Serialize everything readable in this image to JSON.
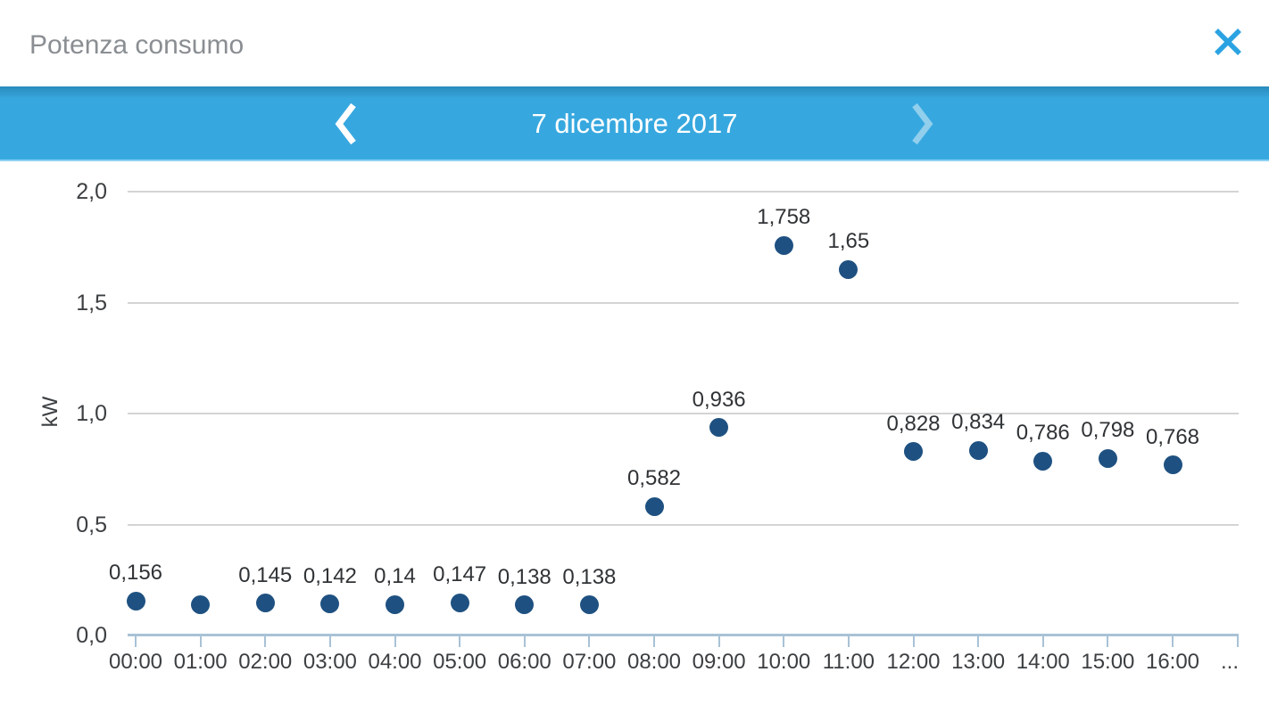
{
  "header": {
    "title": "Potenza consumo"
  },
  "icons": {
    "close": "close-x",
    "prev": "chevron-left",
    "next": "chevron-right"
  },
  "date_nav": {
    "label": "7 dicembre 2017"
  },
  "colors": {
    "accent_blue": "#37a8df",
    "close_blue": "#2ba3e2",
    "point_navy": "#1e5181",
    "grid_gray": "#d4d4d4",
    "axis_blue_gray": "#a9c2d6",
    "text_dark": "#3c3f42",
    "title_gray": "#8a8e92"
  },
  "chart_data": {
    "type": "scatter",
    "title": "Potenza consumo",
    "xlabel": "",
    "ylabel": "kW",
    "ylim": [
      0,
      2.0
    ],
    "grid": true,
    "legend": false,
    "y_ticks": [
      {
        "label": "0,0",
        "value": 0
      },
      {
        "label": "0,5",
        "value": 0.5
      },
      {
        "label": "1,0",
        "value": 1.0
      },
      {
        "label": "1,5",
        "value": 1.5
      },
      {
        "label": "2,0",
        "value": 2.0
      }
    ],
    "x_overflow_label": "...",
    "points": [
      {
        "time": "00:00",
        "value": 0.156,
        "label": "0,156"
      },
      {
        "time": "01:00",
        "value": 0.14,
        "label": ""
      },
      {
        "time": "02:00",
        "value": 0.145,
        "label": "0,145"
      },
      {
        "time": "03:00",
        "value": 0.142,
        "label": "0,142"
      },
      {
        "time": "04:00",
        "value": 0.14,
        "label": "0,14"
      },
      {
        "time": "05:00",
        "value": 0.147,
        "label": "0,147"
      },
      {
        "time": "06:00",
        "value": 0.138,
        "label": "0,138"
      },
      {
        "time": "07:00",
        "value": 0.138,
        "label": "0,138"
      },
      {
        "time": "08:00",
        "value": 0.582,
        "label": "0,582"
      },
      {
        "time": "09:00",
        "value": 0.936,
        "label": "0,936"
      },
      {
        "time": "10:00",
        "value": 1.758,
        "label": "1,758"
      },
      {
        "time": "11:00",
        "value": 1.65,
        "label": "1,65"
      },
      {
        "time": "12:00",
        "value": 0.828,
        "label": "0,828"
      },
      {
        "time": "13:00",
        "value": 0.834,
        "label": "0,834"
      },
      {
        "time": "14:00",
        "value": 0.786,
        "label": "0,786"
      },
      {
        "time": "15:00",
        "value": 0.798,
        "label": "0,798"
      },
      {
        "time": "16:00",
        "value": 0.768,
        "label": "0,768"
      }
    ]
  }
}
